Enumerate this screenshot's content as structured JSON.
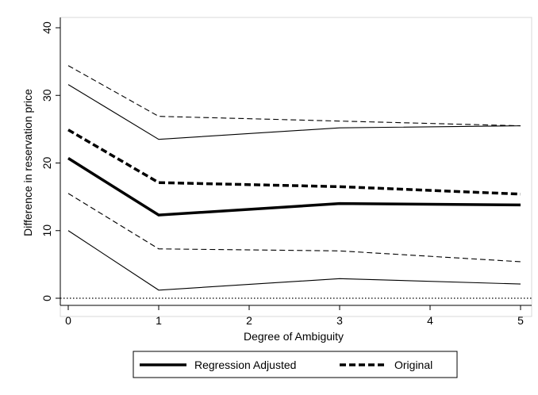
{
  "chart_data": {
    "type": "line",
    "title": "",
    "xlabel": "Degree of Ambiguity",
    "ylabel": "Difference in reservation price",
    "xlim": [
      0,
      5
    ],
    "ylim": [
      0,
      40
    ],
    "xticks": [
      "0",
      "1",
      "2",
      "3",
      "4",
      "5"
    ],
    "yticks": [
      "0",
      "10",
      "20",
      "30",
      "40"
    ],
    "x": [
      0,
      1,
      3,
      5
    ],
    "reference_line": {
      "y": 0,
      "style": "dotted"
    },
    "series": [
      {
        "name": "Regression Adjusted",
        "values": [
          20.7,
          12.3,
          14.0,
          13.8
        ],
        "style": "solid-thick",
        "color": "#000000"
      },
      {
        "name": "Original",
        "values": [
          24.9,
          17.1,
          16.5,
          15.4
        ],
        "style": "dashed-thick",
        "color": "#000000"
      },
      {
        "values": [
          31.6,
          23.5,
          25.2,
          25.5
        ],
        "style": "solid-thin",
        "color": "#000000"
      },
      {
        "values": [
          10.0,
          1.2,
          2.9,
          2.1
        ],
        "style": "solid-thin",
        "color": "#000000"
      },
      {
        "values": [
          34.4,
          26.9,
          26.2,
          25.5
        ],
        "style": "dashed-thin",
        "color": "#000000"
      },
      {
        "values": [
          15.5,
          7.3,
          7.0,
          5.4
        ],
        "style": "dashed-thin",
        "color": "#000000"
      }
    ],
    "legend": {
      "placement": "bottom",
      "entries": [
        {
          "label": "Regression Adjusted",
          "style": "solid-thick"
        },
        {
          "label": "Original",
          "style": "dashed-thick"
        }
      ]
    }
  }
}
